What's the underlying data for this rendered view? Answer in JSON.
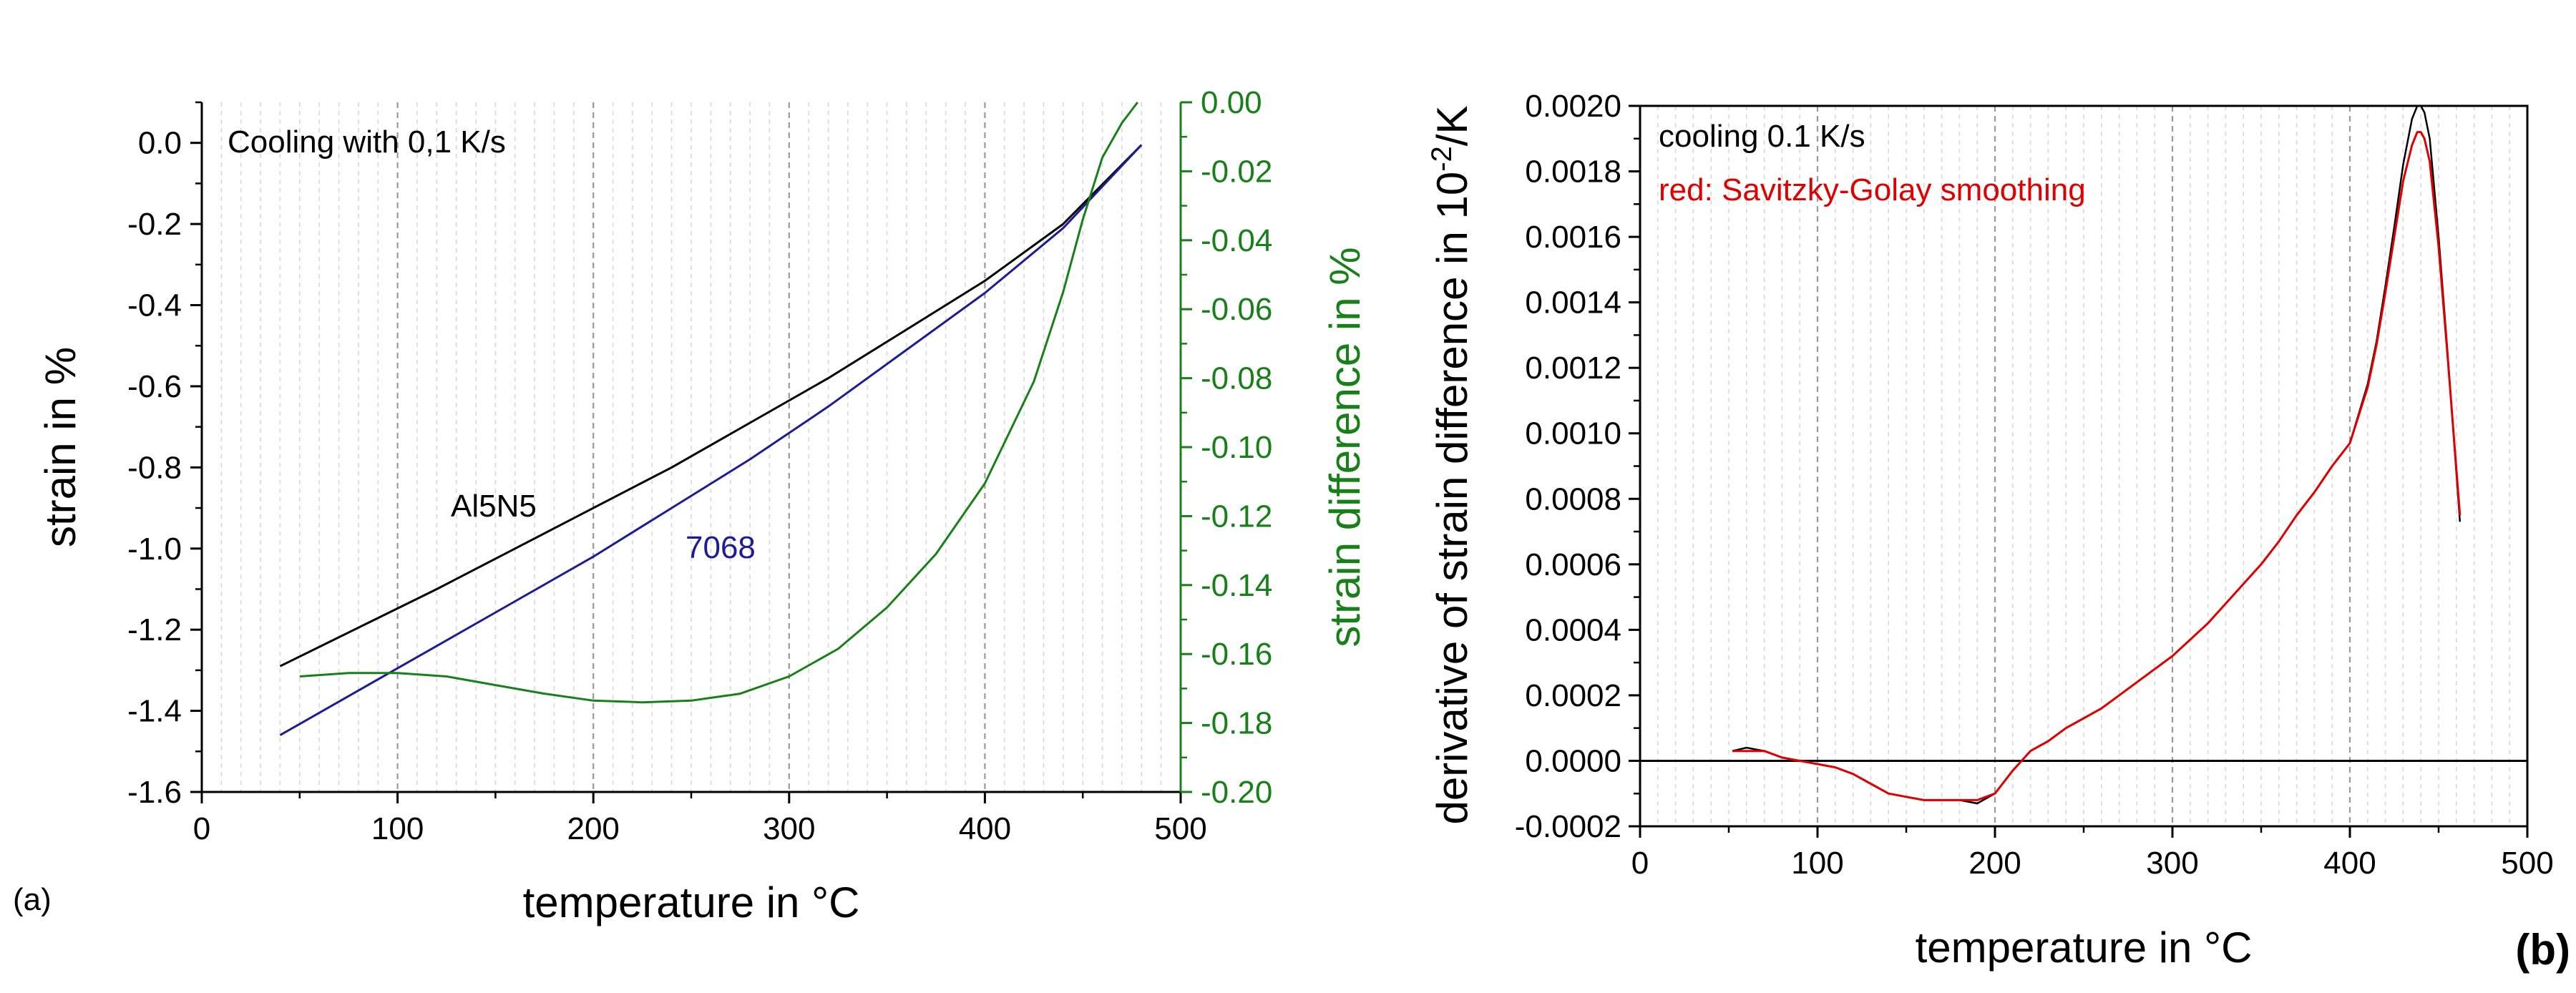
{
  "chart_data": [
    {
      "panel": "a",
      "panel_label": "(a)",
      "type": "line",
      "title": "",
      "annotation": "Cooling with 0,1 K/s",
      "xlabel": "temperature in °C",
      "ylabel": "strain in %",
      "y2label": "strain difference in %",
      "xlim": [
        0,
        500
      ],
      "ylim": [
        -1.6,
        0.1
      ],
      "y2lim": [
        -0.2,
        0.0
      ],
      "x_ticks": [
        0,
        100,
        200,
        300,
        400,
        500
      ],
      "x_tick_labels": [
        "0",
        "100",
        "200",
        "300",
        "400",
        "500"
      ],
      "y_ticks": [
        0.0,
        -0.2,
        -0.4,
        -0.6,
        -0.8,
        -1.0,
        -1.2,
        -1.4,
        -1.6
      ],
      "y_tick_labels": [
        "0.0",
        "-0.2",
        "-0.4",
        "-0.6",
        "-0.8",
        "-1.0",
        "-1.2",
        "-1.4",
        "-1.6"
      ],
      "y2_ticks": [
        0.0,
        -0.02,
        -0.04,
        -0.06,
        -0.08,
        -0.1,
        -0.12,
        -0.14,
        -0.16,
        -0.18,
        -0.2
      ],
      "y2_tick_labels": [
        "0.00",
        "-0.02",
        "-0.04",
        "-0.06",
        "-0.08",
        "-0.10",
        "-0.12",
        "-0.14",
        "-0.16",
        "-0.18",
        "-0.20"
      ],
      "grid": "vertical dashed",
      "series": [
        {
          "name": "Al5N5",
          "axis": "left",
          "color": "#000000",
          "label_color": "#000000",
          "x": [
            40,
            80,
            120,
            160,
            200,
            240,
            280,
            320,
            360,
            400,
            440,
            480
          ],
          "y": [
            -1.29,
            -1.195,
            -1.1,
            -1.0,
            -0.9,
            -0.8,
            -0.69,
            -0.58,
            -0.46,
            -0.34,
            -0.2,
            -0.005
          ]
        },
        {
          "name": "7068",
          "axis": "left",
          "color": "#1c1c96",
          "label_color": "#1c1c96",
          "x": [
            40,
            80,
            120,
            160,
            200,
            240,
            280,
            320,
            360,
            400,
            440,
            480
          ],
          "y": [
            -1.46,
            -1.35,
            -1.24,
            -1.13,
            -1.02,
            -0.9,
            -0.78,
            -0.65,
            -0.51,
            -0.37,
            -0.21,
            -0.005
          ]
        },
        {
          "name": "strain difference",
          "axis": "right",
          "color": "#188018",
          "x": [
            50,
            75,
            100,
            125,
            150,
            175,
            200,
            225,
            250,
            275,
            300,
            325,
            350,
            375,
            400,
            425,
            440,
            450,
            460,
            470,
            478
          ],
          "y": [
            -0.1665,
            -0.1655,
            -0.1655,
            -0.1665,
            -0.169,
            -0.1715,
            -0.1735,
            -0.174,
            -0.1735,
            -0.1715,
            -0.1665,
            -0.1585,
            -0.1465,
            -0.131,
            -0.1105,
            -0.081,
            -0.055,
            -0.034,
            -0.016,
            -0.006,
            0.0
          ]
        }
      ]
    },
    {
      "panel": "b",
      "panel_label": "(b)",
      "type": "line",
      "title": "",
      "annotation": "cooling 0.1 K/s",
      "annotation2": "red: Savitzky-Golay smoothing",
      "xlabel": "temperature in °C",
      "ylabel_prefix": "derivative of strain difference in 10",
      "ylabel_sup": "-2",
      "ylabel_suffix": "/K",
      "xlim": [
        0,
        500
      ],
      "ylim": [
        -0.0002,
        0.002
      ],
      "x_ticks": [
        0,
        100,
        200,
        300,
        400,
        500
      ],
      "x_tick_labels": [
        "0",
        "100",
        "200",
        "300",
        "400",
        "500"
      ],
      "y_ticks": [
        0.002,
        0.0018,
        0.0016,
        0.0014,
        0.0012,
        0.001,
        0.0008,
        0.0006,
        0.0004,
        0.0002,
        0.0,
        -0.0002
      ],
      "y_tick_labels": [
        "0.0020",
        "0.0018",
        "0.0016",
        "0.0014",
        "0.0012",
        "0.0010",
        "0.0008",
        "0.0006",
        "0.0004",
        "0.0002",
        "0.0000",
        "-0.0002"
      ],
      "zero_line": 0.0,
      "grid": "vertical dashed",
      "series": [
        {
          "name": "derivative",
          "color": "#000000",
          "x": [
            52,
            60,
            70,
            80,
            90,
            100,
            110,
            120,
            130,
            140,
            150,
            160,
            170,
            180,
            190,
            200,
            210,
            220,
            230,
            240,
            250,
            260,
            270,
            280,
            290,
            300,
            310,
            320,
            330,
            340,
            350,
            360,
            370,
            380,
            390,
            400,
            410,
            415,
            420,
            425,
            430,
            435,
            438,
            440,
            442,
            445,
            450,
            455,
            462
          ],
          "y": [
            3e-05,
            4e-05,
            3e-05,
            1e-05,
            0.0,
            -1e-05,
            -2e-05,
            -4e-05,
            -7e-05,
            -0.0001,
            -0.00011,
            -0.00012,
            -0.00012,
            -0.00012,
            -0.00013,
            -0.0001,
            -3e-05,
            3e-05,
            6e-05,
            0.0001,
            0.00013,
            0.00016,
            0.0002,
            0.00024,
            0.00028,
            0.00032,
            0.00037,
            0.00042,
            0.00048,
            0.00054,
            0.0006,
            0.00067,
            0.00075,
            0.00082,
            0.0009,
            0.00097,
            0.00115,
            0.00128,
            0.00145,
            0.00163,
            0.00182,
            0.00196,
            0.002,
            0.002,
            0.00198,
            0.0019,
            0.0016,
            0.00125,
            0.00073
          ]
        },
        {
          "name": "Savitzky-Golay smoothing",
          "color": "#e00000",
          "x": [
            52,
            60,
            70,
            80,
            90,
            100,
            110,
            120,
            130,
            140,
            150,
            160,
            170,
            180,
            190,
            200,
            210,
            220,
            230,
            240,
            250,
            260,
            270,
            280,
            290,
            300,
            310,
            320,
            330,
            340,
            350,
            360,
            370,
            380,
            390,
            400,
            410,
            415,
            420,
            425,
            430,
            435,
            438,
            440,
            442,
            445,
            450,
            455,
            462
          ],
          "y": [
            3e-05,
            3e-05,
            3e-05,
            1e-05,
            0.0,
            -1e-05,
            -2e-05,
            -4e-05,
            -7e-05,
            -0.0001,
            -0.00011,
            -0.00012,
            -0.00012,
            -0.00012,
            -0.00012,
            -0.0001,
            -3e-05,
            3e-05,
            6e-05,
            0.0001,
            0.00013,
            0.00016,
            0.0002,
            0.00024,
            0.00028,
            0.00032,
            0.00037,
            0.00042,
            0.00048,
            0.00054,
            0.0006,
            0.00067,
            0.00075,
            0.00082,
            0.0009,
            0.00097,
            0.00114,
            0.00127,
            0.00143,
            0.0016,
            0.00177,
            0.00188,
            0.00192,
            0.00192,
            0.0019,
            0.00183,
            0.00157,
            0.00124,
            0.00075
          ]
        }
      ]
    }
  ]
}
